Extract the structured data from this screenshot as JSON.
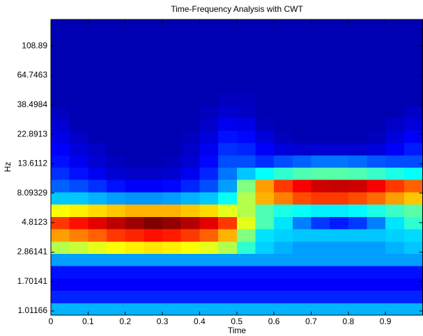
{
  "chart_data": {
    "type": "heatmap",
    "title": "Time-Frequency Analysis with CWT",
    "xlabel": "Time",
    "ylabel": "Hz",
    "colormap": "jet",
    "zlim": [
      0,
      1
    ],
    "ylog": true,
    "xlim": [
      0,
      1
    ],
    "ylim": [
      0.94,
      174
    ],
    "xticks": [
      0,
      0.1,
      0.2,
      0.3,
      0.4,
      0.5,
      0.6,
      0.7,
      0.8,
      0.9
    ],
    "yticks": [
      1.01166,
      1.70141,
      2.86141,
      4.8123,
      8.09329,
      13.6112,
      22.8913,
      38.4984,
      64.7463,
      108.89
    ],
    "x": [
      0.025,
      0.075,
      0.125,
      0.175,
      0.225,
      0.275,
      0.325,
      0.375,
      0.425,
      0.475,
      0.525,
      0.575,
      0.625,
      0.675,
      0.725,
      0.775,
      0.825,
      0.875,
      0.925,
      0.975
    ],
    "y": [
      1.048,
      1.302,
      1.619,
      2.012,
      2.502,
      3.109,
      3.866,
      4.805,
      5.973,
      7.424,
      9.228,
      11.47,
      14.26,
      17.72,
      22.03,
      27.38,
      34.03,
      42.31,
      52.59,
      65.36,
      81.25,
      101.0,
      125.5,
      156.1
    ],
    "z": [
      [
        0.3,
        0.3,
        0.3,
        0.3,
        0.3,
        0.3,
        0.3,
        0.3,
        0.3,
        0.3,
        0.3,
        0.3,
        0.3,
        0.3,
        0.3,
        0.3,
        0.3,
        0.3,
        0.3,
        0.3
      ],
      [
        0.16,
        0.16,
        0.16,
        0.16,
        0.16,
        0.16,
        0.16,
        0.16,
        0.16,
        0.16,
        0.16,
        0.16,
        0.16,
        0.16,
        0.16,
        0.16,
        0.16,
        0.16,
        0.16,
        0.16
      ],
      [
        0.12,
        0.12,
        0.12,
        0.12,
        0.12,
        0.12,
        0.12,
        0.12,
        0.12,
        0.12,
        0.12,
        0.12,
        0.12,
        0.12,
        0.12,
        0.12,
        0.12,
        0.12,
        0.12,
        0.12
      ],
      [
        0.14,
        0.14,
        0.14,
        0.14,
        0.14,
        0.14,
        0.14,
        0.14,
        0.14,
        0.14,
        0.14,
        0.14,
        0.14,
        0.14,
        0.14,
        0.14,
        0.14,
        0.14,
        0.14,
        0.14
      ],
      [
        0.28,
        0.28,
        0.28,
        0.28,
        0.28,
        0.28,
        0.28,
        0.28,
        0.28,
        0.28,
        0.28,
        0.28,
        0.28,
        0.28,
        0.28,
        0.28,
        0.28,
        0.28,
        0.28,
        0.28
      ],
      [
        0.55,
        0.57,
        0.6,
        0.62,
        0.64,
        0.65,
        0.64,
        0.62,
        0.6,
        0.55,
        0.42,
        0.33,
        0.3,
        0.28,
        0.28,
        0.28,
        0.28,
        0.28,
        0.3,
        0.32
      ],
      [
        0.72,
        0.75,
        0.78,
        0.82,
        0.84,
        0.86,
        0.85,
        0.82,
        0.78,
        0.7,
        0.5,
        0.35,
        0.33,
        0.32,
        0.32,
        0.32,
        0.32,
        0.32,
        0.33,
        0.34
      ],
      [
        0.82,
        0.86,
        0.9,
        0.94,
        0.97,
        1.0,
        0.98,
        0.95,
        0.9,
        0.82,
        0.6,
        0.45,
        0.35,
        0.25,
        0.18,
        0.15,
        0.18,
        0.25,
        0.35,
        0.42
      ],
      [
        0.62,
        0.64,
        0.66,
        0.68,
        0.7,
        0.7,
        0.7,
        0.68,
        0.66,
        0.6,
        0.55,
        0.45,
        0.4,
        0.38,
        0.36,
        0.36,
        0.37,
        0.4,
        0.43,
        0.46
      ],
      [
        0.32,
        0.32,
        0.3,
        0.28,
        0.27,
        0.27,
        0.28,
        0.3,
        0.32,
        0.38,
        0.55,
        0.7,
        0.75,
        0.8,
        0.82,
        0.82,
        0.8,
        0.77,
        0.72,
        0.68
      ],
      [
        0.22,
        0.2,
        0.17,
        0.14,
        0.12,
        0.12,
        0.13,
        0.16,
        0.2,
        0.28,
        0.5,
        0.72,
        0.82,
        0.88,
        0.92,
        0.93,
        0.92,
        0.88,
        0.82,
        0.78
      ],
      [
        0.17,
        0.14,
        0.11,
        0.08,
        0.07,
        0.07,
        0.08,
        0.11,
        0.16,
        0.24,
        0.32,
        0.38,
        0.42,
        0.45,
        0.46,
        0.46,
        0.45,
        0.43,
        0.4,
        0.38
      ],
      [
        0.14,
        0.11,
        0.08,
        0.06,
        0.05,
        0.05,
        0.06,
        0.08,
        0.13,
        0.2,
        0.2,
        0.17,
        0.2,
        0.22,
        0.24,
        0.24,
        0.23,
        0.21,
        0.2,
        0.2
      ],
      [
        0.12,
        0.09,
        0.07,
        0.05,
        0.05,
        0.05,
        0.05,
        0.07,
        0.11,
        0.17,
        0.16,
        0.12,
        0.09,
        0.08,
        0.08,
        0.08,
        0.08,
        0.09,
        0.12,
        0.15
      ],
      [
        0.1,
        0.07,
        0.05,
        0.05,
        0.05,
        0.05,
        0.05,
        0.06,
        0.09,
        0.14,
        0.13,
        0.09,
        0.06,
        0.05,
        0.05,
        0.05,
        0.05,
        0.06,
        0.09,
        0.12
      ],
      [
        0.08,
        0.05,
        0.05,
        0.05,
        0.05,
        0.05,
        0.05,
        0.05,
        0.07,
        0.11,
        0.1,
        0.06,
        0.05,
        0.05,
        0.05,
        0.05,
        0.05,
        0.05,
        0.07,
        0.09
      ],
      [
        0.06,
        0.05,
        0.05,
        0.05,
        0.05,
        0.05,
        0.05,
        0.05,
        0.06,
        0.08,
        0.07,
        0.05,
        0.05,
        0.05,
        0.05,
        0.05,
        0.05,
        0.05,
        0.05,
        0.07
      ],
      [
        0.05,
        0.05,
        0.05,
        0.05,
        0.05,
        0.05,
        0.05,
        0.05,
        0.05,
        0.06,
        0.06,
        0.05,
        0.05,
        0.05,
        0.05,
        0.05,
        0.05,
        0.05,
        0.05,
        0.05
      ],
      [
        0.05,
        0.05,
        0.05,
        0.05,
        0.05,
        0.05,
        0.05,
        0.05,
        0.05,
        0.05,
        0.05,
        0.05,
        0.05,
        0.05,
        0.05,
        0.05,
        0.05,
        0.05,
        0.05,
        0.05
      ],
      [
        0.05,
        0.05,
        0.05,
        0.05,
        0.05,
        0.05,
        0.05,
        0.05,
        0.05,
        0.05,
        0.05,
        0.05,
        0.05,
        0.05,
        0.05,
        0.05,
        0.05,
        0.05,
        0.05,
        0.05
      ],
      [
        0.05,
        0.05,
        0.05,
        0.05,
        0.05,
        0.05,
        0.05,
        0.05,
        0.05,
        0.05,
        0.05,
        0.05,
        0.05,
        0.05,
        0.05,
        0.05,
        0.05,
        0.05,
        0.05,
        0.05
      ],
      [
        0.05,
        0.05,
        0.05,
        0.05,
        0.05,
        0.05,
        0.05,
        0.05,
        0.05,
        0.05,
        0.05,
        0.05,
        0.05,
        0.05,
        0.05,
        0.05,
        0.05,
        0.05,
        0.05,
        0.05
      ],
      [
        0.05,
        0.05,
        0.05,
        0.05,
        0.05,
        0.05,
        0.05,
        0.05,
        0.05,
        0.05,
        0.05,
        0.05,
        0.05,
        0.05,
        0.05,
        0.05,
        0.05,
        0.05,
        0.05,
        0.05
      ],
      [
        0.05,
        0.05,
        0.05,
        0.05,
        0.05,
        0.05,
        0.05,
        0.05,
        0.05,
        0.05,
        0.05,
        0.05,
        0.05,
        0.05,
        0.05,
        0.05,
        0.05,
        0.05,
        0.05,
        0.05
      ]
    ]
  }
}
